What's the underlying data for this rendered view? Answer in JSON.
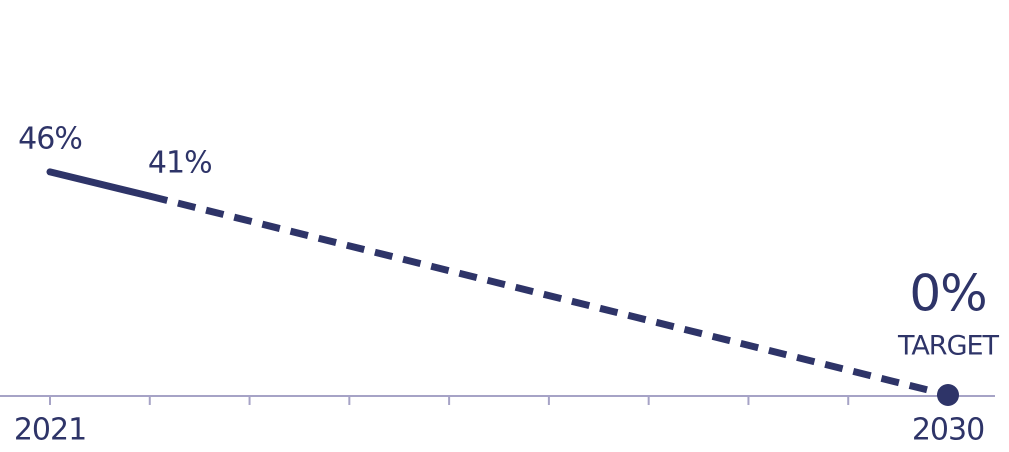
{
  "chart_data": {
    "type": "line",
    "series": [
      {
        "color": "#2e3468",
        "x": [
          2021,
          2022
        ],
        "values": [
          46,
          41
        ],
        "value_labels": [
          "46%",
          "41%"
        ]
      }
    ],
    "target": {
      "x": 2030,
      "value": 0,
      "label": "0%",
      "text": "TARGET",
      "color": "#2e3468",
      "dashed": true
    },
    "xlim": [
      2021,
      2030
    ],
    "xticks": [
      2021,
      2030
    ],
    "minor_xticks": [
      2022,
      2023,
      2024,
      2025,
      2026,
      2027,
      2028,
      2029
    ],
    "ylim": [
      0,
      80
    ],
    "axis_color": "#a6a3c6"
  }
}
